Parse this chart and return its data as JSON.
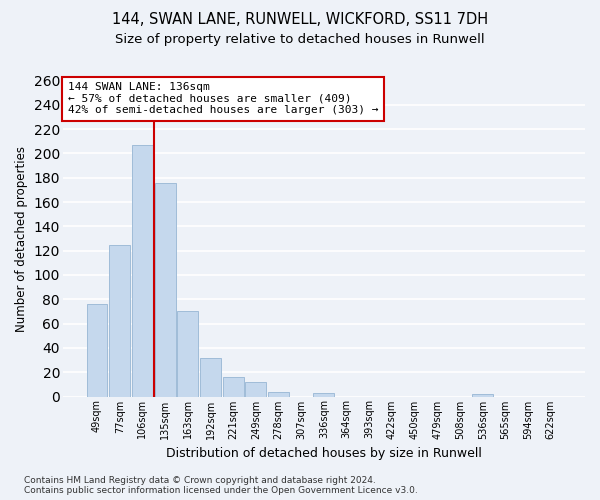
{
  "title": "144, SWAN LANE, RUNWELL, WICKFORD, SS11 7DH",
  "subtitle": "Size of property relative to detached houses in Runwell",
  "xlabel": "Distribution of detached houses by size in Runwell",
  "ylabel": "Number of detached properties",
  "categories": [
    "49sqm",
    "77sqm",
    "106sqm",
    "135sqm",
    "163sqm",
    "192sqm",
    "221sqm",
    "249sqm",
    "278sqm",
    "307sqm",
    "336sqm",
    "364sqm",
    "393sqm",
    "422sqm",
    "450sqm",
    "479sqm",
    "508sqm",
    "536sqm",
    "565sqm",
    "594sqm",
    "622sqm"
  ],
  "values": [
    76,
    125,
    207,
    176,
    70,
    32,
    16,
    12,
    4,
    0,
    3,
    0,
    0,
    0,
    0,
    0,
    0,
    2,
    0,
    0,
    0
  ],
  "bar_color": "#c5d8ed",
  "bar_edge_color": "#a0bcd8",
  "vline_color": "#cc0000",
  "vline_xidx": 3,
  "annotation_text": "144 SWAN LANE: 136sqm\n← 57% of detached houses are smaller (409)\n42% of semi-detached houses are larger (303) →",
  "annotation_box_color": "#ffffff",
  "annotation_box_edge_color": "#cc0000",
  "ylim": [
    0,
    260
  ],
  "yticks": [
    0,
    20,
    40,
    60,
    80,
    100,
    120,
    140,
    160,
    180,
    200,
    220,
    240,
    260
  ],
  "bg_color": "#eef2f8",
  "grid_color": "#ffffff",
  "footer": "Contains HM Land Registry data © Crown copyright and database right 2024.\nContains public sector information licensed under the Open Government Licence v3.0.",
  "title_fontsize": 10.5,
  "subtitle_fontsize": 9.5,
  "xlabel_fontsize": 9,
  "ylabel_fontsize": 8.5,
  "tick_fontsize": 7,
  "annotation_fontsize": 8,
  "footer_fontsize": 6.5
}
